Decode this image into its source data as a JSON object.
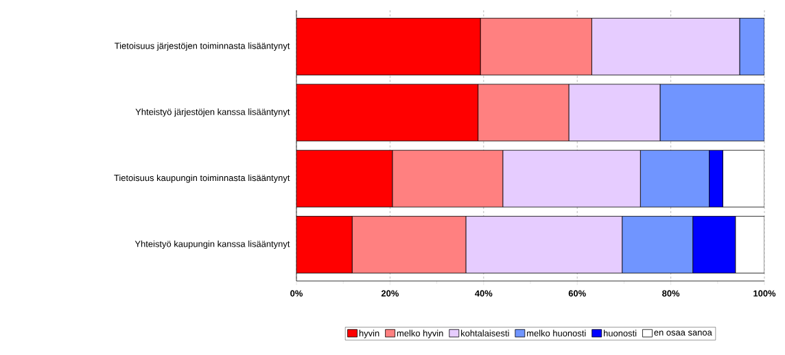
{
  "chart_data": {
    "type": "bar",
    "orientation": "horizontal",
    "stacked": true,
    "categories": [
      "Tietoisuus järjestöjen toiminnasta lisääntynyt",
      "Yhteistyö järjestöjen kanssa lisääntynyt",
      "Tietoisuus kaupungin toiminnasta lisääntynyt",
      "Yhteistyö kaupungin kanssa lisääntynyt"
    ],
    "series": [
      {
        "name": "hyvin",
        "color": "#ff0000",
        "values": [
          39.3,
          38.8,
          20.5,
          11.9
        ]
      },
      {
        "name": "melko hyvin",
        "color": "#ff8080",
        "values": [
          23.8,
          19.4,
          23.6,
          24.3
        ]
      },
      {
        "name": "kohtalaisesti",
        "color": "#e6ccff",
        "values": [
          31.6,
          19.5,
          29.4,
          33.4
        ]
      },
      {
        "name": "melko huonosti",
        "color": "#7095ff",
        "values": [
          5.3,
          22.3,
          14.7,
          15.1
        ]
      },
      {
        "name": "huonosti",
        "color": "#0000ff",
        "values": [
          0,
          0,
          2.9,
          9.1
        ]
      },
      {
        "name": "en osaa sanoa",
        "color": "#ffffff",
        "values": [
          0,
          0,
          8.9,
          6.2
        ]
      }
    ],
    "xlim": [
      0,
      100
    ],
    "xticks": [
      {
        "value": 0,
        "label": "0%"
      },
      {
        "value": 10,
        "label": null
      },
      {
        "value": 20,
        "label": "20%"
      },
      {
        "value": 30,
        "label": null
      },
      {
        "value": 40,
        "label": "40%"
      },
      {
        "value": 50,
        "label": null
      },
      {
        "value": 60,
        "label": "60%"
      },
      {
        "value": 70,
        "label": null
      },
      {
        "value": 80,
        "label": "80%"
      },
      {
        "value": 90,
        "label": null
      },
      {
        "value": 100,
        "label": "100%"
      }
    ],
    "grid": "x",
    "legend": "bottom"
  }
}
